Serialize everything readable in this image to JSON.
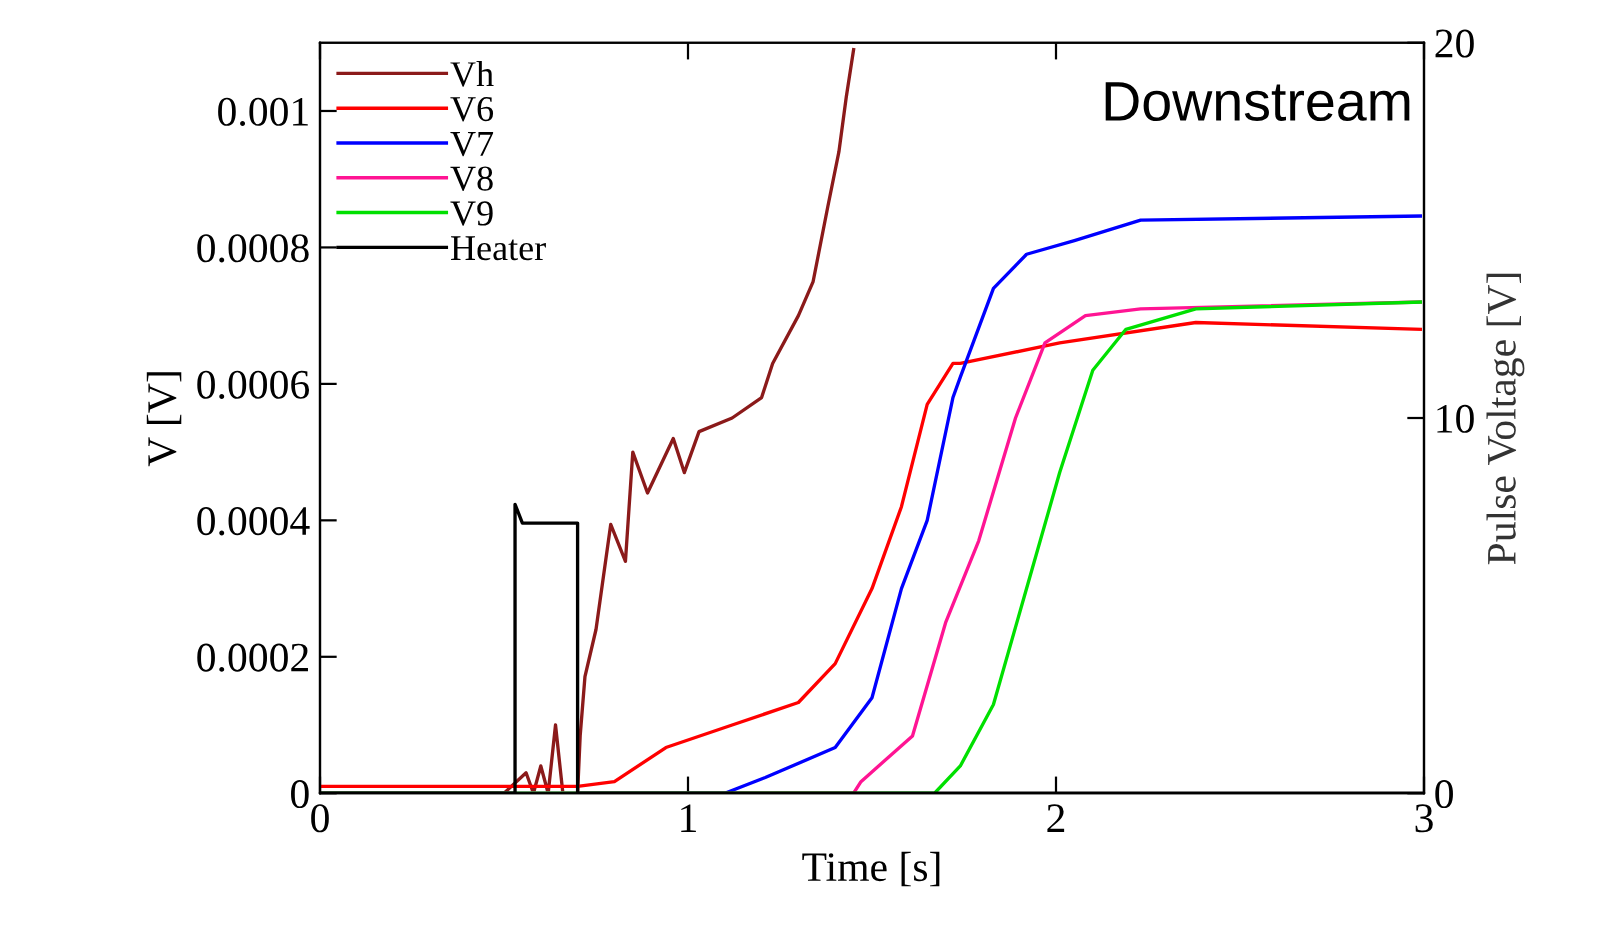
{
  "chart_data": {
    "type": "line",
    "xlabel": "Time [s]",
    "ylabel": "V [V]",
    "y2label": "Pulse Voltage [V]",
    "annotations": [
      "Downstream"
    ],
    "xlim": [
      0,
      3
    ],
    "xticks": [
      0,
      1,
      2,
      3
    ],
    "ylim": [
      0,
      0.0011
    ],
    "yticks": [
      0,
      {
        "value": 0.0002,
        "label": "0.0002"
      },
      {
        "value": 0.0004,
        "label": "0.0004"
      },
      {
        "value": 0.0006,
        "label": "0.0006"
      },
      {
        "value": 0.0008,
        "label": "0.0008"
      },
      {
        "value": 0.001,
        "label": "0.001"
      }
    ],
    "y2lim": [
      0,
      20
    ],
    "y2ticks": [
      0,
      10,
      20
    ],
    "legend": "top left",
    "grid": false,
    "marker": "none",
    "line_style": "solid",
    "series": [
      {
        "name": "Vh",
        "color": "#8b1a1a",
        "x": [
          0,
          0.5,
          0.56,
          0.58,
          0.6,
          0.62,
          0.64,
          0.66,
          0.7,
          0.707,
          0.72,
          0.75,
          0.79,
          0.83,
          0.85,
          0.89,
          0.96,
          0.99,
          1.03,
          1.12,
          1.2,
          1.23,
          1.3,
          1.34,
          1.38,
          1.41,
          1.43,
          1.45
        ],
        "values": [
          0,
          0,
          3e-05,
          0,
          4e-05,
          0,
          0.0001,
          0,
          0,
          8.4e-05,
          0.000171,
          0.00024,
          0.000394,
          0.00034,
          0.0005,
          0.00044,
          0.00052,
          0.00047,
          0.00053,
          0.00055,
          0.00058,
          0.00063,
          0.0007,
          0.00075,
          0.00086,
          0.00094,
          0.00102,
          0.00109
        ]
      },
      {
        "name": "V6",
        "color": "#ff0000",
        "x": [
          0,
          0.3,
          0.7,
          0.8,
          0.94,
          1.12,
          1.3,
          1.4,
          1.5,
          1.58,
          1.65,
          1.72,
          1.74,
          2.01,
          2.38,
          2.99
        ],
        "values": [
          1e-05,
          1e-05,
          1e-05,
          1.7e-05,
          6.7e-05,
          0.0001,
          0.000133,
          0.00019,
          0.0003,
          0.00042,
          0.00057,
          0.00063,
          0.00063,
          0.00066,
          0.00069,
          0.00068
        ]
      },
      {
        "name": "V7",
        "color": "#0000ff",
        "x": [
          0,
          1.1,
          1.21,
          1.4,
          1.5,
          1.58,
          1.65,
          1.72,
          1.74,
          1.83,
          1.92,
          2.05,
          2.23,
          2.99
        ],
        "values": [
          0,
          0,
          2.3e-05,
          6.7e-05,
          0.00014,
          0.0003,
          0.0004,
          0.00058,
          0.00061,
          0.00074,
          0.00079,
          0.00081,
          0.00084,
          0.000846
        ]
      },
      {
        "name": "V8",
        "color": "#ff1493",
        "x": [
          0,
          1.45,
          1.47,
          1.61,
          1.7,
          1.79,
          1.89,
          1.97,
          2.08,
          2.23,
          2.99
        ],
        "values": [
          0,
          0,
          1.7e-05,
          8.4e-05,
          0.00025,
          0.00037,
          0.00055,
          0.00066,
          0.0007,
          0.00071,
          0.00072
        ]
      },
      {
        "name": "V9",
        "color": "#00e000",
        "x": [
          0,
          1.67,
          1.74,
          1.83,
          1.92,
          2.01,
          2.1,
          2.19,
          2.38,
          2.99
        ],
        "values": [
          0,
          0,
          4e-05,
          0.00013,
          0.0003,
          0.00047,
          0.00062,
          0.00068,
          0.00071,
          0.00072
        ]
      },
      {
        "name": "Heater",
        "color": "#000000",
        "axis": "y2",
        "x": [
          0,
          0.53,
          0.53,
          0.55,
          0.7,
          0.7,
          3
        ],
        "values": [
          0,
          0,
          7.7,
          7.2,
          7.2,
          0,
          0
        ]
      }
    ]
  }
}
